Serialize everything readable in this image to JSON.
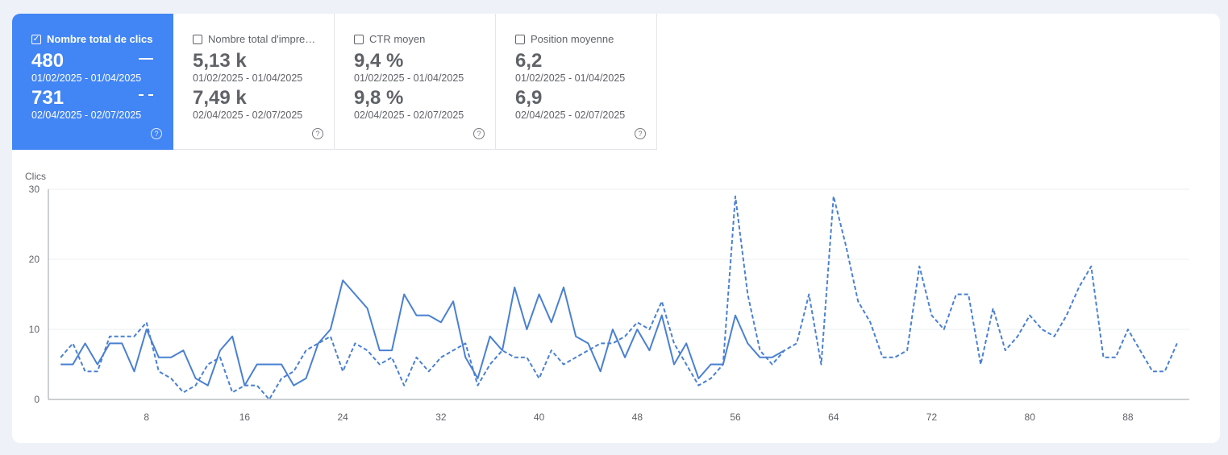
{
  "metrics": [
    {
      "label": "Nombre total de clics",
      "checked": true,
      "value1": "480",
      "date1": "01/02/2025 - 01/04/2025",
      "value2": "731",
      "date2": "02/04/2025 - 02/07/2025"
    },
    {
      "label": "Nombre total d'impre…",
      "checked": false,
      "value1": "5,13 k",
      "date1": "01/02/2025 - 01/04/2025",
      "value2": "7,49 k",
      "date2": "02/04/2025 - 02/07/2025"
    },
    {
      "label": "CTR moyen",
      "checked": false,
      "value1": "9,4 %",
      "date1": "01/02/2025 - 01/04/2025",
      "value2": "9,8 %",
      "date2": "02/04/2025 - 02/07/2025"
    },
    {
      "label": "Position moyenne",
      "checked": false,
      "value1": "6,2",
      "date1": "01/02/2025 - 01/04/2025",
      "value2": "6,9",
      "date2": "02/04/2025 - 02/07/2025"
    }
  ],
  "check_glyph": "✓",
  "help_glyph": "?",
  "colors": {
    "accent": "#4285f4",
    "line": "#4a80d2"
  },
  "chart_data": {
    "type": "line",
    "ylabel": "Clics",
    "ylim": [
      0,
      30
    ],
    "yticks": [
      0,
      10,
      20,
      30
    ],
    "xlim": [
      0,
      93
    ],
    "xticks": [
      8,
      16,
      24,
      32,
      40,
      48,
      56,
      64,
      72,
      80,
      88
    ],
    "grid": true,
    "series": [
      {
        "name": "01/02/2025 - 01/04/2025",
        "style": "solid",
        "x": [
          1,
          2,
          3,
          4,
          5,
          6,
          7,
          8,
          9,
          10,
          11,
          12,
          13,
          14,
          15,
          16,
          17,
          18,
          19,
          20,
          21,
          22,
          23,
          24,
          25,
          26,
          27,
          28,
          29,
          30,
          31,
          32,
          33,
          34,
          35,
          36,
          37,
          38,
          39,
          40,
          41,
          42,
          43,
          44,
          45,
          46,
          47,
          48,
          49,
          50,
          51,
          52,
          53,
          54,
          55,
          56,
          57,
          58,
          59,
          60
        ],
        "values": [
          5,
          5,
          8,
          5,
          8,
          8,
          4,
          10,
          6,
          6,
          7,
          3,
          2,
          7,
          9,
          2,
          5,
          5,
          5,
          2,
          3,
          8,
          10,
          17,
          15,
          13,
          7,
          7,
          15,
          12,
          12,
          11,
          14,
          6,
          3,
          9,
          7,
          16,
          10,
          15,
          11,
          16,
          9,
          8,
          4,
          10,
          6,
          10,
          7,
          12,
          5,
          8,
          3,
          5,
          5,
          12,
          8,
          6,
          6,
          7
        ]
      },
      {
        "name": "02/04/2025 - 02/07/2025",
        "style": "dashed",
        "x": [
          1,
          2,
          3,
          4,
          5,
          6,
          7,
          8,
          9,
          10,
          11,
          12,
          13,
          14,
          15,
          16,
          17,
          18,
          19,
          20,
          21,
          22,
          23,
          24,
          25,
          26,
          27,
          28,
          29,
          30,
          31,
          32,
          33,
          34,
          35,
          36,
          37,
          38,
          39,
          40,
          41,
          42,
          43,
          44,
          45,
          46,
          47,
          48,
          49,
          50,
          51,
          52,
          53,
          54,
          55,
          56,
          57,
          58,
          59,
          60,
          61,
          62,
          63,
          64,
          65,
          66,
          67,
          68,
          69,
          70,
          71,
          72,
          73,
          74,
          75,
          76,
          77,
          78,
          79,
          80,
          81,
          82,
          83,
          84,
          85,
          86,
          87,
          88,
          89,
          90,
          91,
          92
        ],
        "values": [
          6,
          8,
          4,
          4,
          9,
          9,
          9,
          11,
          4,
          3,
          1,
          2,
          5,
          6,
          1,
          2,
          2,
          0,
          3,
          4,
          7,
          8,
          9,
          4,
          8,
          7,
          5,
          6,
          2,
          6,
          4,
          6,
          7,
          8,
          2,
          5,
          7,
          6,
          6,
          3,
          7,
          5,
          6,
          7,
          8,
          8,
          9,
          11,
          10,
          14,
          8,
          5,
          2,
          3,
          5,
          29,
          15,
          7,
          5,
          7,
          8,
          15,
          5,
          29,
          22,
          14,
          11,
          6,
          6,
          7,
          19,
          12,
          10,
          15,
          15,
          5,
          13,
          7,
          9,
          12,
          10,
          9,
          12,
          16,
          19,
          6,
          6,
          10,
          7,
          4,
          4,
          8
        ]
      }
    ]
  }
}
